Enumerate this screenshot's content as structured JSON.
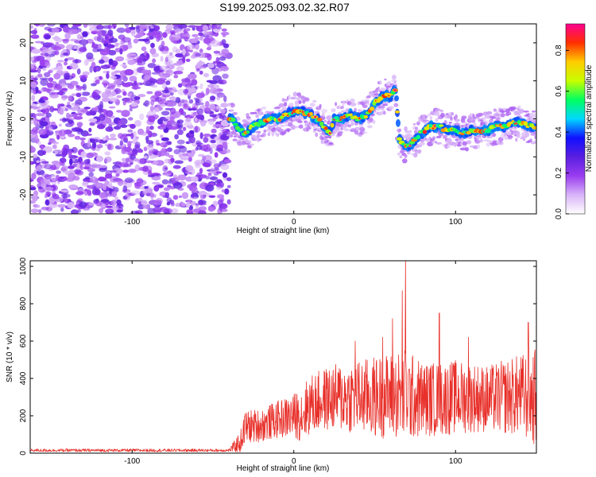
{
  "title": "S199.2025.093.02.32.R07",
  "chart_data": [
    {
      "type": "heatmap",
      "xlabel": "Height of straight line (km)",
      "ylabel": "Frequency (Hz)",
      "xlim": [
        -163,
        150
      ],
      "ylim": [
        -25,
        25
      ],
      "xticks": [
        -100,
        0,
        100
      ],
      "yticks": [
        -20,
        -10,
        0,
        10,
        20
      ],
      "noise_region_x": [
        -163,
        -40
      ],
      "ridge": {
        "x": [
          -40,
          -38,
          -35,
          -30,
          -25,
          -20,
          -15,
          -10,
          -5,
          0,
          5,
          10,
          15,
          18,
          22,
          25,
          30,
          35,
          40,
          45,
          50,
          55,
          60,
          63,
          65,
          68,
          72,
          78,
          85,
          90,
          95,
          100,
          105,
          110,
          115,
          120,
          125,
          130,
          135,
          140,
          145,
          150
        ],
        "y": [
          0,
          0,
          -2,
          -4,
          -2,
          -1,
          0,
          0,
          1,
          2,
          2,
          1,
          0,
          -2,
          -4,
          0,
          0,
          1,
          0,
          1,
          4,
          6,
          6,
          8,
          -5,
          -7,
          -7,
          -4,
          -2,
          -2,
          -3,
          -3,
          -4,
          -3,
          -3,
          -3,
          -2,
          -2,
          -1,
          -1,
          -2,
          -2
        ]
      },
      "colorbar": {
        "label": "Normalized spectral amplitude",
        "ticks": [
          0.0,
          0.2,
          0.4,
          0.6,
          0.8
        ],
        "tick_labels": [
          "0.0",
          "0.2",
          "0.4",
          "0.6",
          "0.8"
        ],
        "range": [
          0,
          0.93
        ],
        "colormap": [
          "#ffffff",
          "#d8b4f8",
          "#9a3cf0",
          "#5a1fe0",
          "#1010ff",
          "#00d8ff",
          "#00ff60",
          "#c8ff00",
          "#ffcc00",
          "#ff3000",
          "#ff0090"
        ]
      }
    },
    {
      "type": "line",
      "xlabel": "Height of straight line (km)",
      "ylabel": "SNR (10 * v/v)",
      "xlim": [
        -163,
        150
      ],
      "ylim": [
        0,
        1030
      ],
      "xticks": [
        -100,
        0,
        100
      ],
      "yticks": [
        0,
        200,
        400,
        600,
        800,
        1000
      ],
      "color": "#e8302a",
      "envelope": {
        "x": [
          -163,
          -120,
          -80,
          -40,
          -33,
          -30,
          -20,
          -10,
          0,
          5,
          10,
          20,
          30,
          40,
          50,
          60,
          68,
          70,
          72,
          80,
          90,
          100,
          110,
          120,
          130,
          140,
          148,
          150
        ],
        "baseline": [
          15,
          15,
          15,
          15,
          60,
          140,
          150,
          180,
          200,
          210,
          260,
          290,
          300,
          300,
          300,
          310,
          310,
          320,
          300,
          290,
          290,
          300,
          300,
          290,
          300,
          310,
          300,
          300
        ],
        "spread": [
          8,
          8,
          8,
          8,
          60,
          90,
          90,
          100,
          120,
          150,
          160,
          170,
          190,
          200,
          220,
          230,
          250,
          260,
          240,
          200,
          200,
          200,
          190,
          180,
          200,
          220,
          260,
          260
        ]
      },
      "peaks": [
        {
          "x": 69,
          "y": 1030
        },
        {
          "x": 67,
          "y": 870
        },
        {
          "x": 61,
          "y": 720
        },
        {
          "x": 90,
          "y": 750
        },
        {
          "x": 55,
          "y": 620
        },
        {
          "x": 145,
          "y": 700
        },
        {
          "x": 38,
          "y": 600
        },
        {
          "x": 108,
          "y": 620
        }
      ]
    }
  ]
}
